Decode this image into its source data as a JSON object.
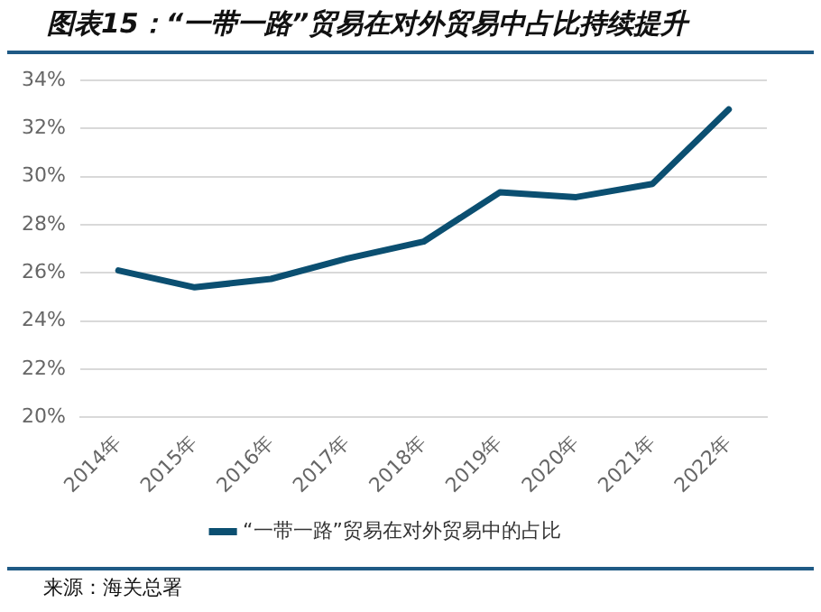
{
  "chart_data": {
    "type": "line",
    "title": "图表15：“一带一路”贸易在对外贸易中占比持续提升",
    "categories": [
      "2014年",
      "2015年",
      "2016年",
      "2017年",
      "2018年",
      "2019年",
      "2020年",
      "2021年",
      "2022年"
    ],
    "series": [
      {
        "name": "“一带一路”贸易在对外贸易中的占比",
        "color": "#0b4f71",
        "values": [
          26.1,
          25.4,
          25.75,
          26.6,
          27.3,
          29.35,
          29.15,
          29.7,
          32.8
        ]
      }
    ],
    "ylim": [
      20,
      34
    ],
    "yticks": [
      {
        "value": 20,
        "label": "20%"
      },
      {
        "value": 22,
        "label": "22%"
      },
      {
        "value": 24,
        "label": "24%"
      },
      {
        "value": 26,
        "label": "26%"
      },
      {
        "value": 28,
        "label": "28%"
      },
      {
        "value": 30,
        "label": "30%"
      },
      {
        "value": 32,
        "label": "32%"
      },
      {
        "value": 34,
        "label": "34%"
      }
    ],
    "grid": "y",
    "legend": "bottom",
    "marker": "none",
    "line_style": "solid",
    "annotations": [
      "来源：海关总署"
    ]
  }
}
